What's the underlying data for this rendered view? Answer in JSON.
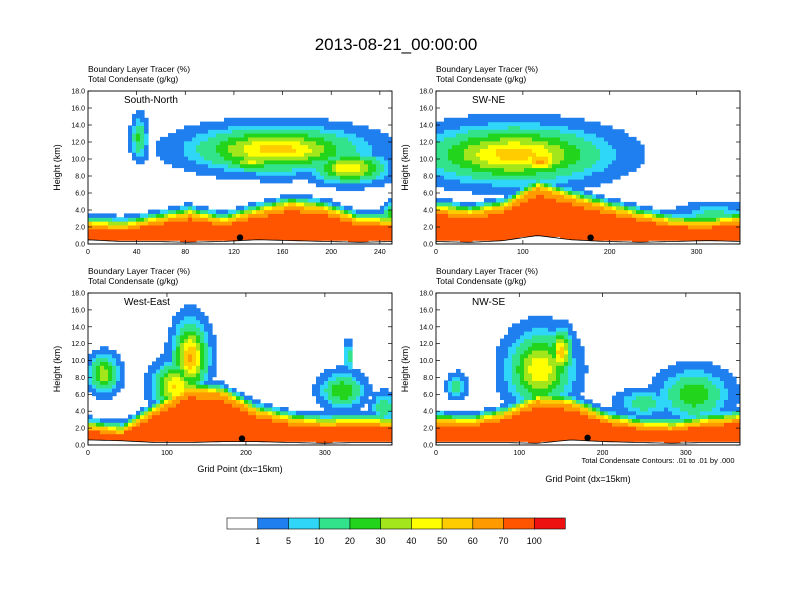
{
  "title": "2013-08-21_00:00:00",
  "colors": {
    "levels": [
      "#ffffff",
      "#1f7fef",
      "#2fd6f8",
      "#33e38b",
      "#22d41b",
      "#a3e61b",
      "#ffff00",
      "#ffcc00",
      "#ff9a00",
      "#ff5500",
      "#ee1111"
    ]
  },
  "colorbar": {
    "labels": [
      "1",
      "5",
      "10",
      "20",
      "30",
      "40",
      "50",
      "60",
      "70",
      "100"
    ]
  },
  "footnote": "Total Condensate Contours: .01 to .01 by .000",
  "chart_data": [
    {
      "type": "heatmap",
      "panel_label": "South-North",
      "subtitle1": "Boundary Layer Tracer    (%)",
      "subtitle2": "Total Condensate    (g/kg)",
      "ylabel": "Height (km)",
      "xlabel": "",
      "xlim": [
        0,
        250
      ],
      "ylim": [
        0,
        18
      ],
      "xticks": [
        "0",
        "40",
        "80",
        "120",
        "160",
        "200",
        "240"
      ],
      "yticks": [
        "0.0",
        "2.0",
        "4.0",
        "6.0",
        "8.0",
        "10.0",
        "12.0",
        "14.0",
        "16.0",
        "18.0"
      ],
      "marker_x": 125,
      "surface_km": [
        0.5,
        0.3,
        0.3,
        0.2,
        0.3,
        0.5,
        0.4,
        0.3,
        0.2,
        0.3
      ],
      "bl_top_km": [
        2.2,
        1.9,
        2.6,
        3.4,
        2.5,
        3.6,
        4.5,
        4.0,
        2.6,
        2.4
      ],
      "blobs": [
        {
          "x": 155,
          "z": 11.2,
          "sx": 50,
          "sz": 1.9,
          "v": 55
        },
        {
          "x": 215,
          "z": 9.0,
          "sx": 22,
          "sz": 1.3,
          "v": 50
        },
        {
          "x": 135,
          "z": 9.8,
          "sx": 18,
          "sz": 0.9,
          "v": 42
        },
        {
          "x": 42,
          "z": 12.5,
          "sx": 5,
          "sz": 1.8,
          "v": 22
        },
        {
          "x": 250,
          "z": 3.5,
          "sx": 6,
          "sz": 1.0,
          "v": 25
        }
      ]
    },
    {
      "type": "heatmap",
      "panel_label": "SW-NE",
      "subtitle1": "Boundary Layer Tracer    (%)",
      "subtitle2": "Total Condensate    (g/kg)",
      "ylabel": "Height (km)",
      "xlabel": "",
      "xlim": [
        0,
        350
      ],
      "ylim": [
        0,
        18
      ],
      "xticks": [
        "0",
        "100",
        "200",
        "300"
      ],
      "yticks": [
        "0.0",
        "2.0",
        "4.0",
        "6.0",
        "8.0",
        "10.0",
        "12.0",
        "14.0",
        "16.0",
        "18.0"
      ],
      "marker_x": 178,
      "surface_km": [
        0.3,
        0.2,
        0.4,
        1.0,
        0.5,
        0.3,
        0.2,
        0.3,
        0.4,
        0.3
      ],
      "bl_top_km": [
        4.0,
        3.5,
        4.2,
        6.6,
        5.4,
        4.2,
        3.2,
        2.4,
        2.2,
        2.8
      ],
      "blobs": [
        {
          "x": 90,
          "z": 10.6,
          "sx": 75,
          "sz": 2.4,
          "v": 55
        },
        {
          "x": 120,
          "z": 9.8,
          "sx": 22,
          "sz": 1.2,
          "v": 62
        },
        {
          "x": 35,
          "z": 12.4,
          "sx": 14,
          "sz": 0.8,
          "v": 20
        },
        {
          "x": 320,
          "z": 3.2,
          "sx": 30,
          "sz": 1.2,
          "v": 15
        }
      ]
    },
    {
      "type": "heatmap",
      "panel_label": "West-East",
      "subtitle1": "Boundary Layer Tracer    (%)",
      "subtitle2": "Total Condensate    (g/kg)",
      "ylabel": "Height (km)",
      "xlabel": "Grid Point (dx=15km)",
      "xlim": [
        0,
        385
      ],
      "ylim": [
        0,
        18
      ],
      "xticks": [
        "0",
        "100",
        "200",
        "300"
      ],
      "yticks": [
        "0.0",
        "2.0",
        "4.0",
        "6.0",
        "8.0",
        "10.0",
        "12.0",
        "14.0",
        "16.0",
        "18.0"
      ],
      "marker_x": 195,
      "surface_km": [
        0.6,
        0.5,
        0.3,
        0.3,
        0.4,
        0.4,
        0.3,
        0.2,
        0.3,
        0.3
      ],
      "bl_top_km": [
        2.0,
        1.5,
        4.0,
        6.5,
        6.0,
        3.8,
        2.8,
        2.4,
        2.6,
        2.4
      ],
      "blobs": [
        {
          "x": 130,
          "z": 10.5,
          "sx": 16,
          "sz": 3.0,
          "v": 62
        },
        {
          "x": 20,
          "z": 8.5,
          "sx": 14,
          "sz": 1.6,
          "v": 38
        },
        {
          "x": 110,
          "z": 7.0,
          "sx": 20,
          "sz": 2.0,
          "v": 52
        },
        {
          "x": 322,
          "z": 6.5,
          "sx": 20,
          "sz": 1.5,
          "v": 30
        },
        {
          "x": 375,
          "z": 4.5,
          "sx": 12,
          "sz": 1.2,
          "v": 20
        },
        {
          "x": 330,
          "z": 10.5,
          "sx": 4,
          "sz": 1.3,
          "v": 18
        }
      ]
    },
    {
      "type": "heatmap",
      "panel_label": "NW-SE",
      "subtitle1": "Boundary Layer Tracer    (%)",
      "subtitle2": "Total Condensate    (g/kg)",
      "ylabel": "Height (km)",
      "xlabel": "Grid Point (dx=15km)",
      "xlim": [
        0,
        365
      ],
      "ylim": [
        0,
        18
      ],
      "xticks": [
        "0",
        "100",
        "200",
        "300"
      ],
      "yticks": [
        "0.0",
        "2.0",
        "4.0",
        "6.0",
        "8.0",
        "10.0",
        "12.0",
        "14.0",
        "16.0",
        "18.0"
      ],
      "marker_x": 182,
      "surface_km": [
        0.3,
        0.3,
        0.3,
        0.2,
        0.6,
        0.4,
        0.3,
        0.2,
        0.3,
        0.3
      ],
      "bl_top_km": [
        2.8,
        2.5,
        3.4,
        5.2,
        4.8,
        3.0,
        2.2,
        2.0,
        2.6,
        3.0
      ],
      "blobs": [
        {
          "x": 125,
          "z": 9.0,
          "sx": 28,
          "sz": 3.2,
          "v": 50
        },
        {
          "x": 150,
          "z": 11.0,
          "sx": 10,
          "sz": 2.0,
          "v": 58
        },
        {
          "x": 25,
          "z": 7.0,
          "sx": 9,
          "sz": 1.1,
          "v": 15
        },
        {
          "x": 310,
          "z": 6.0,
          "sx": 30,
          "sz": 2.2,
          "v": 28
        },
        {
          "x": 250,
          "z": 5.0,
          "sx": 25,
          "sz": 1.2,
          "v": 15
        }
      ]
    }
  ]
}
